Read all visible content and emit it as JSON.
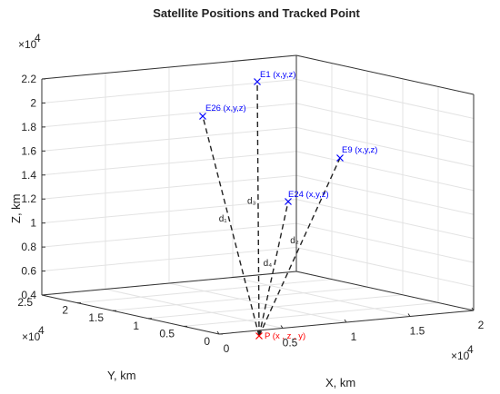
{
  "chart_data": {
    "type": "scatter3d",
    "title": "Satellite Positions and Tracked Point",
    "xlabel": "X, km",
    "ylabel": "Y, km",
    "zlabel": "Z, km",
    "x_multiplier": "×10",
    "x_multiplier_exp": "4",
    "y_multiplier": "×10",
    "y_multiplier_exp": "4",
    "z_multiplier": "×10",
    "z_multiplier_exp": "4",
    "xlim": [
      0,
      2
    ],
    "ylim": [
      0,
      2.5
    ],
    "zlim": [
      0.4,
      2.2
    ],
    "x_ticks": [
      "0",
      "0.5",
      "1",
      "1.5",
      "2"
    ],
    "y_ticks": [
      "0",
      "0.5",
      "1",
      "1.5",
      "2",
      "2.5"
    ],
    "z_ticks": [
      "0.4",
      "0.6",
      "0.8",
      "1",
      "1.2",
      "1.4",
      "1.6",
      "1.8",
      "2",
      "2.2"
    ],
    "grid": true,
    "points": [
      {
        "label": "P (x , z , y)",
        "color": "#ff0000",
        "role": "tracked"
      },
      {
        "label": "E1 (x,y,z)",
        "color": "#0000ff"
      },
      {
        "label": "E26 (x,y,z)",
        "color": "#0000ff"
      },
      {
        "label": "E9 (x,y,z)",
        "color": "#0000ff"
      },
      {
        "label": "E24 (x,y,z)",
        "color": "#0000ff"
      }
    ],
    "line_labels": [
      {
        "text": "d₃",
        "to": "E1"
      },
      {
        "text": "d₁",
        "to": "E26"
      },
      {
        "text": "d₂",
        "to": "E9"
      },
      {
        "text": "d₄",
        "to": "E24"
      }
    ]
  }
}
